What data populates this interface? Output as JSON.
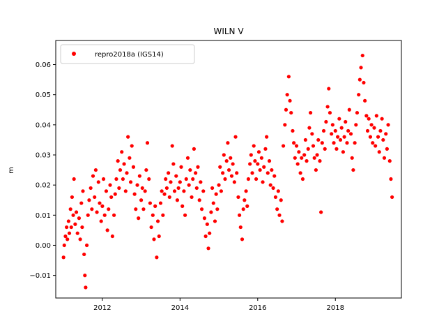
{
  "chart_data": {
    "type": "scatter",
    "title": "WILN V",
    "xlabel": "",
    "ylabel": "m",
    "xlim": [
      2010.8,
      2019.7
    ],
    "ylim": [
      -0.0175,
      0.068
    ],
    "xticks": [
      2012,
      2014,
      2016,
      2018
    ],
    "xtick_labels": [
      "2012",
      "2014",
      "2016",
      "2018"
    ],
    "yticks": [
      -0.01,
      0.0,
      0.01,
      0.02,
      0.03,
      0.04,
      0.05,
      0.06
    ],
    "ytick_labels": [
      "−0.01",
      "0.00",
      "0.01",
      "0.02",
      "0.03",
      "0.04",
      "0.05",
      "0.06"
    ],
    "grid": false,
    "legend_position": "top-left",
    "series": [
      {
        "name": "repro2018a (IGS14)",
        "color": "#ff0000",
        "marker": "circle",
        "points": [
          [
            2011.0,
            -0.004
          ],
          [
            2011.02,
            0.0
          ],
          [
            2011.05,
            0.003
          ],
          [
            2011.08,
            0.006
          ],
          [
            2011.1,
            0.002
          ],
          [
            2011.13,
            0.008
          ],
          [
            2011.15,
            0.004
          ],
          [
            2011.18,
            0.012
          ],
          [
            2011.2,
            0.006
          ],
          [
            2011.22,
            0.016
          ],
          [
            2011.25,
            0.01
          ],
          [
            2011.27,
            0.022
          ],
          [
            2011.3,
            0.007
          ],
          [
            2011.33,
            0.011
          ],
          [
            2011.36,
            0.004
          ],
          [
            2011.4,
            0.009
          ],
          [
            2011.43,
            0.002
          ],
          [
            2011.46,
            0.014
          ],
          [
            2011.48,
            0.006
          ],
          [
            2011.5,
            0.018
          ],
          [
            2011.53,
            -0.003
          ],
          [
            2011.55,
            -0.01
          ],
          [
            2011.57,
            -0.014
          ],
          [
            2011.6,
            0.0
          ],
          [
            2011.63,
            0.01
          ],
          [
            2011.66,
            0.015
          ],
          [
            2011.7,
            0.019
          ],
          [
            2011.73,
            0.012
          ],
          [
            2011.76,
            0.023
          ],
          [
            2011.8,
            0.016
          ],
          [
            2011.83,
            0.025
          ],
          [
            2011.86,
            0.011
          ],
          [
            2011.9,
            0.021
          ],
          [
            2011.93,
            0.014
          ],
          [
            2011.97,
            0.008
          ],
          [
            2012.0,
            0.013
          ],
          [
            2012.03,
            0.022
          ],
          [
            2012.06,
            0.01
          ],
          [
            2012.1,
            0.018
          ],
          [
            2012.13,
            0.005
          ],
          [
            2012.16,
            0.012
          ],
          [
            2012.2,
            0.02
          ],
          [
            2012.23,
            0.016
          ],
          [
            2012.26,
            0.003
          ],
          [
            2012.3,
            0.01
          ],
          [
            2012.33,
            0.017
          ],
          [
            2012.36,
            0.022
          ],
          [
            2012.4,
            0.028
          ],
          [
            2012.43,
            0.019
          ],
          [
            2012.46,
            0.025
          ],
          [
            2012.5,
            0.031
          ],
          [
            2012.53,
            0.022
          ],
          [
            2012.56,
            0.027
          ],
          [
            2012.6,
            0.018
          ],
          [
            2012.63,
            0.024
          ],
          [
            2012.66,
            0.036
          ],
          [
            2012.7,
            0.029
          ],
          [
            2012.73,
            0.021
          ],
          [
            2012.76,
            0.033
          ],
          [
            2012.8,
            0.026
          ],
          [
            2012.83,
            0.017
          ],
          [
            2012.86,
            0.012
          ],
          [
            2012.9,
            0.02
          ],
          [
            2012.93,
            0.009
          ],
          [
            2012.96,
            0.023
          ],
          [
            2013.0,
            0.015
          ],
          [
            2013.03,
            0.019
          ],
          [
            2013.06,
            0.012
          ],
          [
            2013.1,
            0.018
          ],
          [
            2013.13,
            0.025
          ],
          [
            2013.16,
            0.034
          ],
          [
            2013.2,
            0.022
          ],
          [
            2013.23,
            0.014
          ],
          [
            2013.26,
            0.006
          ],
          [
            2013.3,
            0.01
          ],
          [
            2013.33,
            0.002
          ],
          [
            2013.36,
            0.013
          ],
          [
            2013.4,
            -0.004
          ],
          [
            2013.43,
            0.008
          ],
          [
            2013.46,
            0.003
          ],
          [
            2013.5,
            0.014
          ],
          [
            2013.53,
            0.018
          ],
          [
            2013.56,
            0.01
          ],
          [
            2013.6,
            0.017
          ],
          [
            2013.63,
            0.022
          ],
          [
            2013.66,
            0.019
          ],
          [
            2013.7,
            0.024
          ],
          [
            2013.73,
            0.016
          ],
          [
            2013.76,
            0.021
          ],
          [
            2013.8,
            0.033
          ],
          [
            2013.83,
            0.027
          ],
          [
            2013.86,
            0.018
          ],
          [
            2013.9,
            0.023
          ],
          [
            2013.93,
            0.015
          ],
          [
            2013.96,
            0.019
          ],
          [
            2014.0,
            0.021
          ],
          [
            2014.03,
            0.026
          ],
          [
            2014.06,
            0.013
          ],
          [
            2014.1,
            0.018
          ],
          [
            2014.13,
            0.01
          ],
          [
            2014.16,
            0.022
          ],
          [
            2014.2,
            0.029
          ],
          [
            2014.23,
            0.02
          ],
          [
            2014.26,
            0.025
          ],
          [
            2014.3,
            0.016
          ],
          [
            2014.33,
            0.022
          ],
          [
            2014.36,
            0.032
          ],
          [
            2014.4,
            0.024
          ],
          [
            2014.43,
            0.019
          ],
          [
            2014.46,
            0.026
          ],
          [
            2014.5,
            0.015
          ],
          [
            2014.53,
            0.021
          ],
          [
            2014.56,
            0.012
          ],
          [
            2014.6,
            0.018
          ],
          [
            2014.63,
            0.009
          ],
          [
            2014.66,
            0.003
          ],
          [
            2014.7,
            0.007
          ],
          [
            2014.73,
            -0.001
          ],
          [
            2014.76,
            0.004
          ],
          [
            2014.8,
            0.011
          ],
          [
            2014.83,
            0.019
          ],
          [
            2014.86,
            0.014
          ],
          [
            2014.9,
            0.008
          ],
          [
            2014.93,
            0.017
          ],
          [
            2014.96,
            0.012
          ],
          [
            2015.0,
            0.02
          ],
          [
            2015.03,
            0.026
          ],
          [
            2015.06,
            0.018
          ],
          [
            2015.1,
            0.024
          ],
          [
            2015.13,
            0.03
          ],
          [
            2015.16,
            0.022
          ],
          [
            2015.2,
            0.028
          ],
          [
            2015.23,
            0.034
          ],
          [
            2015.26,
            0.025
          ],
          [
            2015.3,
            0.029
          ],
          [
            2015.33,
            0.023
          ],
          [
            2015.36,
            0.027
          ],
          [
            2015.4,
            0.021
          ],
          [
            2015.43,
            0.036
          ],
          [
            2015.46,
            0.024
          ],
          [
            2015.5,
            0.016
          ],
          [
            2015.53,
            0.01
          ],
          [
            2015.56,
            0.006
          ],
          [
            2015.6,
            0.002
          ],
          [
            2015.63,
            0.012
          ],
          [
            2015.66,
            0.015
          ],
          [
            2015.7,
            0.018
          ],
          [
            2015.73,
            0.013
          ],
          [
            2015.76,
            0.022
          ],
          [
            2015.8,
            0.027
          ],
          [
            2015.83,
            0.03
          ],
          [
            2015.86,
            0.024
          ],
          [
            2015.9,
            0.033
          ],
          [
            2015.93,
            0.028
          ],
          [
            2015.96,
            0.022
          ],
          [
            2016.0,
            0.027
          ],
          [
            2016.03,
            0.031
          ],
          [
            2016.06,
            0.025
          ],
          [
            2016.1,
            0.029
          ],
          [
            2016.13,
            0.021
          ],
          [
            2016.16,
            0.026
          ],
          [
            2016.2,
            0.032
          ],
          [
            2016.23,
            0.036
          ],
          [
            2016.26,
            0.024
          ],
          [
            2016.3,
            0.028
          ],
          [
            2016.33,
            0.02
          ],
          [
            2016.36,
            0.025
          ],
          [
            2016.4,
            0.019
          ],
          [
            2016.43,
            0.023
          ],
          [
            2016.46,
            0.016
          ],
          [
            2016.5,
            0.012
          ],
          [
            2016.53,
            0.018
          ],
          [
            2016.56,
            0.01
          ],
          [
            2016.6,
            0.015
          ],
          [
            2016.63,
            0.008
          ],
          [
            2016.66,
            0.033
          ],
          [
            2016.7,
            0.04
          ],
          [
            2016.73,
            0.045
          ],
          [
            2016.76,
            0.05
          ],
          [
            2016.8,
            0.056
          ],
          [
            2016.83,
            0.048
          ],
          [
            2016.86,
            0.044
          ],
          [
            2016.9,
            0.038
          ],
          [
            2016.93,
            0.034
          ],
          [
            2016.96,
            0.029
          ],
          [
            2017.0,
            0.033
          ],
          [
            2017.03,
            0.027
          ],
          [
            2017.06,
            0.031
          ],
          [
            2017.1,
            0.024
          ],
          [
            2017.13,
            0.029
          ],
          [
            2017.16,
            0.022
          ],
          [
            2017.2,
            0.03
          ],
          [
            2017.23,
            0.035
          ],
          [
            2017.26,
            0.028
          ],
          [
            2017.3,
            0.032
          ],
          [
            2017.33,
            0.039
          ],
          [
            2017.36,
            0.044
          ],
          [
            2017.4,
            0.037
          ],
          [
            2017.43,
            0.033
          ],
          [
            2017.46,
            0.029
          ],
          [
            2017.5,
            0.025
          ],
          [
            2017.53,
            0.03
          ],
          [
            2017.56,
            0.035
          ],
          [
            2017.6,
            0.028
          ],
          [
            2017.63,
            0.011
          ],
          [
            2017.66,
            0.034
          ],
          [
            2017.7,
            0.038
          ],
          [
            2017.73,
            0.032
          ],
          [
            2017.76,
            0.041
          ],
          [
            2017.8,
            0.046
          ],
          [
            2017.83,
            0.052
          ],
          [
            2017.86,
            0.044
          ],
          [
            2017.9,
            0.037
          ],
          [
            2017.93,
            0.04
          ],
          [
            2017.96,
            0.034
          ],
          [
            2018.0,
            0.038
          ],
          [
            2018.03,
            0.032
          ],
          [
            2018.06,
            0.036
          ],
          [
            2018.1,
            0.042
          ],
          [
            2018.13,
            0.035
          ],
          [
            2018.16,
            0.039
          ],
          [
            2018.2,
            0.031
          ],
          [
            2018.23,
            0.036
          ],
          [
            2018.26,
            0.041
          ],
          [
            2018.3,
            0.034
          ],
          [
            2018.33,
            0.038
          ],
          [
            2018.36,
            0.045
          ],
          [
            2018.4,
            0.037
          ],
          [
            2018.43,
            0.029
          ],
          [
            2018.46,
            0.025
          ],
          [
            2018.5,
            0.034
          ],
          [
            2018.53,
            0.04
          ],
          [
            2018.56,
            0.044
          ],
          [
            2018.6,
            0.05
          ],
          [
            2018.63,
            0.055
          ],
          [
            2018.66,
            0.059
          ],
          [
            2018.7,
            0.063
          ],
          [
            2018.73,
            0.054
          ],
          [
            2018.76,
            0.048
          ],
          [
            2018.8,
            0.043
          ],
          [
            2018.83,
            0.038
          ],
          [
            2018.86,
            0.042
          ],
          [
            2018.9,
            0.036
          ],
          [
            2018.93,
            0.04
          ],
          [
            2018.96,
            0.034
          ],
          [
            2019.0,
            0.039
          ],
          [
            2019.03,
            0.033
          ],
          [
            2019.06,
            0.043
          ],
          [
            2019.1,
            0.036
          ],
          [
            2019.13,
            0.031
          ],
          [
            2019.16,
            0.038
          ],
          [
            2019.2,
            0.042
          ],
          [
            2019.23,
            0.035
          ],
          [
            2019.26,
            0.029
          ],
          [
            2019.3,
            0.037
          ],
          [
            2019.33,
            0.032
          ],
          [
            2019.36,
            0.04
          ],
          [
            2019.4,
            0.028
          ],
          [
            2019.43,
            0.022
          ],
          [
            2019.46,
            0.016
          ]
        ]
      }
    ]
  }
}
